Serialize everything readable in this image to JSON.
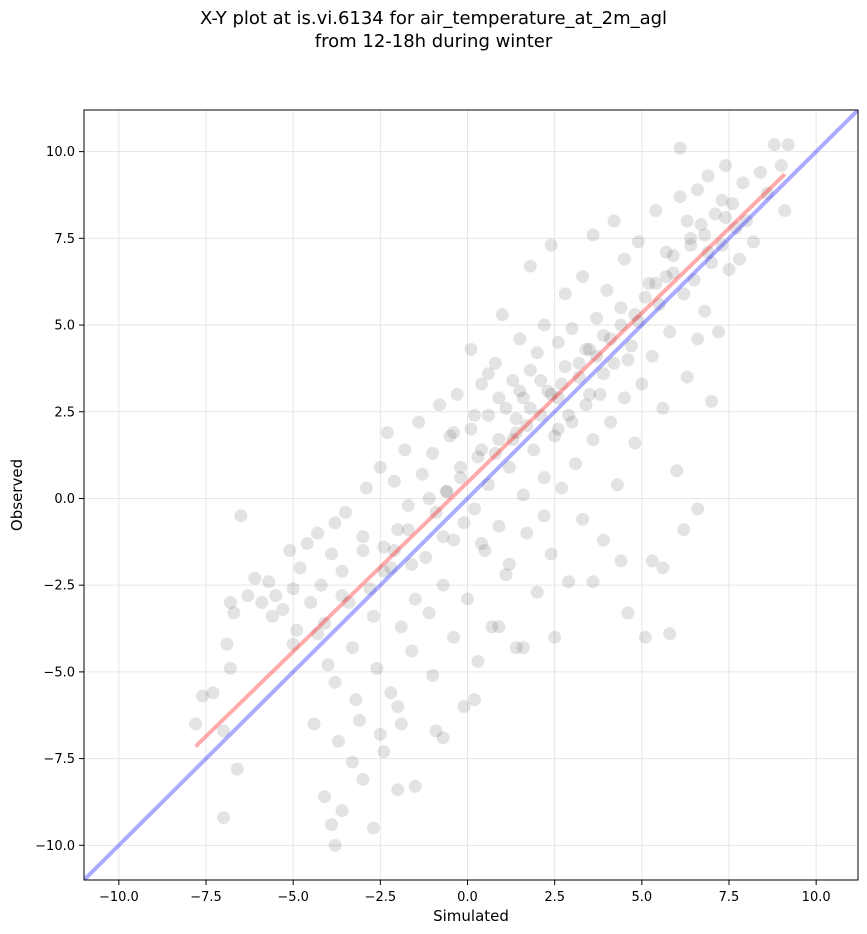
{
  "chart_data": {
    "type": "scatter",
    "title": [
      "X-Y plot at is.vi.6134 for air_temperature_at_2m_agl",
      "from 12-18h during winter"
    ],
    "xlabel": "Simulated",
    "ylabel": "Observed",
    "xlim": [
      -11.0,
      11.2
    ],
    "ylim": [
      -11.0,
      11.2
    ],
    "xticks": [
      -10.0,
      -7.5,
      -5.0,
      -2.5,
      0.0,
      2.5,
      5.0,
      7.5,
      10.0
    ],
    "yticks": [
      -10.0,
      -7.5,
      -5.0,
      -2.5,
      0.0,
      2.5,
      5.0,
      7.5,
      10.0
    ],
    "xtick_labels": [
      "−10.0",
      "−7.5",
      "−5.0",
      "−2.5",
      "0.0",
      "2.5",
      "5.0",
      "7.5",
      "10.0"
    ],
    "ytick_labels": [
      "−10.0",
      "−7.5",
      "−5.0",
      "−2.5",
      "0.0",
      "2.5",
      "5.0",
      "7.5",
      "10.0"
    ],
    "grid": true,
    "colors": {
      "points": "#000000",
      "identity_line": "#0000ff",
      "regression_line": "#ff0000"
    },
    "identity_line": {
      "x": [
        -11.0,
        11.2
      ],
      "y": [
        -11.0,
        11.2
      ]
    },
    "regression_line": {
      "x": [
        -7.8,
        9.1
      ],
      "y": [
        -7.15,
        9.35
      ]
    },
    "points": [
      [
        -7.8,
        -6.5
      ],
      [
        -7.6,
        -5.7
      ],
      [
        -7.3,
        -5.6
      ],
      [
        -7.0,
        -9.2
      ],
      [
        -7.0,
        -6.7
      ],
      [
        -6.9,
        -4.2
      ],
      [
        -6.8,
        -3.0
      ],
      [
        -6.7,
        -3.3
      ],
      [
        -6.6,
        -7.8
      ],
      [
        -6.5,
        -0.5
      ],
      [
        -6.8,
        -4.9
      ],
      [
        -6.3,
        -2.8
      ],
      [
        -6.1,
        -2.3
      ],
      [
        -5.9,
        -3.0
      ],
      [
        -5.7,
        -2.4
      ],
      [
        -5.5,
        -2.8
      ],
      [
        -5.3,
        -3.2
      ],
      [
        -5.1,
        -1.5
      ],
      [
        -5.0,
        -2.6
      ],
      [
        -4.9,
        -3.8
      ],
      [
        -4.8,
        -2.0
      ],
      [
        -4.6,
        -1.3
      ],
      [
        -4.5,
        -3.0
      ],
      [
        -4.4,
        -6.5
      ],
      [
        -4.3,
        -1.0
      ],
      [
        -4.2,
        -2.5
      ],
      [
        -4.1,
        -3.6
      ],
      [
        -4.0,
        -4.8
      ],
      [
        -3.9,
        -1.6
      ],
      [
        -3.8,
        -0.7
      ],
      [
        -3.8,
        -5.3
      ],
      [
        -3.7,
        -7.0
      ],
      [
        -3.6,
        -2.1
      ],
      [
        -3.5,
        -0.4
      ],
      [
        -3.4,
        -3.0
      ],
      [
        -3.3,
        -4.3
      ],
      [
        -3.2,
        -5.8
      ],
      [
        -3.1,
        -6.4
      ],
      [
        -3.0,
        -1.1
      ],
      [
        -3.0,
        -8.1
      ],
      [
        -2.9,
        0.3
      ],
      [
        -2.8,
        -2.6
      ],
      [
        -2.7,
        -3.4
      ],
      [
        -2.6,
        -4.9
      ],
      [
        -2.5,
        0.9
      ],
      [
        -2.4,
        -1.4
      ],
      [
        -2.4,
        -7.3
      ],
      [
        -2.3,
        1.9
      ],
      [
        -2.2,
        -2.0
      ],
      [
        -2.2,
        -5.6
      ],
      [
        -2.1,
        0.5
      ],
      [
        -2.0,
        -0.9
      ],
      [
        -2.0,
        -6.0
      ],
      [
        -1.9,
        -3.7
      ],
      [
        -1.8,
        1.4
      ],
      [
        -1.7,
        -0.2
      ],
      [
        -1.6,
        -4.4
      ],
      [
        -1.5,
        -8.3
      ],
      [
        -1.5,
        -2.9
      ],
      [
        -1.4,
        2.2
      ],
      [
        -1.3,
        0.7
      ],
      [
        -1.2,
        -1.7
      ],
      [
        -1.1,
        -3.3
      ],
      [
        -1.0,
        -5.1
      ],
      [
        -1.0,
        1.3
      ],
      [
        -0.9,
        -0.4
      ],
      [
        -0.8,
        2.7
      ],
      [
        -0.7,
        -2.5
      ],
      [
        -0.7,
        -6.9
      ],
      [
        -0.6,
        0.2
      ],
      [
        -0.5,
        1.8
      ],
      [
        -0.4,
        -1.2
      ],
      [
        -0.4,
        -4.0
      ],
      [
        -0.3,
        3.0
      ],
      [
        -0.2,
        0.9
      ],
      [
        -0.1,
        -0.7
      ],
      [
        0.0,
        -2.9
      ],
      [
        0.1,
        4.3
      ],
      [
        0.1,
        2.0
      ],
      [
        0.2,
        -0.3
      ],
      [
        0.3,
        -4.7
      ],
      [
        0.3,
        1.2
      ],
      [
        0.4,
        3.3
      ],
      [
        0.5,
        -1.5
      ],
      [
        0.6,
        0.4
      ],
      [
        0.6,
        2.4
      ],
      [
        0.7,
        -3.7
      ],
      [
        0.8,
        3.9
      ],
      [
        0.9,
        1.7
      ],
      [
        0.9,
        -0.8
      ],
      [
        1.0,
        5.3
      ],
      [
        1.1,
        2.6
      ],
      [
        1.1,
        -2.2
      ],
      [
        1.2,
        0.9
      ],
      [
        1.3,
        3.4
      ],
      [
        1.4,
        -4.3
      ],
      [
        1.4,
        1.9
      ],
      [
        1.5,
        4.6
      ],
      [
        1.6,
        0.1
      ],
      [
        1.6,
        2.9
      ],
      [
        1.7,
        -1.0
      ],
      [
        1.8,
        3.7
      ],
      [
        1.8,
        6.7
      ],
      [
        1.9,
        1.4
      ],
      [
        2.0,
        4.2
      ],
      [
        2.0,
        -2.7
      ],
      [
        2.1,
        2.4
      ],
      [
        2.2,
        0.6
      ],
      [
        2.2,
        5.0
      ],
      [
        2.3,
        3.1
      ],
      [
        2.4,
        7.3
      ],
      [
        2.4,
        -1.6
      ],
      [
        2.5,
        1.8
      ],
      [
        2.6,
        4.5
      ],
      [
        2.6,
        2.9
      ],
      [
        2.7,
        0.3
      ],
      [
        2.8,
        3.8
      ],
      [
        2.8,
        5.9
      ],
      [
        2.9,
        -2.4
      ],
      [
        3.0,
        2.2
      ],
      [
        3.0,
        4.9
      ],
      [
        3.1,
        1.0
      ],
      [
        3.2,
        3.5
      ],
      [
        3.3,
        6.4
      ],
      [
        3.3,
        -0.6
      ],
      [
        3.4,
        2.7
      ],
      [
        3.5,
        4.3
      ],
      [
        3.6,
        7.6
      ],
      [
        3.6,
        1.7
      ],
      [
        3.7,
        5.2
      ],
      [
        3.8,
        3.0
      ],
      [
        3.9,
        -1.2
      ],
      [
        3.9,
        4.7
      ],
      [
        4.0,
        6.0
      ],
      [
        4.1,
        2.2
      ],
      [
        4.2,
        8.0
      ],
      [
        4.2,
        3.9
      ],
      [
        4.3,
        0.4
      ],
      [
        4.4,
        5.5
      ],
      [
        4.5,
        2.9
      ],
      [
        4.5,
        6.9
      ],
      [
        4.6,
        -3.3
      ],
      [
        4.7,
        4.4
      ],
      [
        4.8,
        1.6
      ],
      [
        4.9,
        7.4
      ],
      [
        4.9,
        5.1
      ],
      [
        5.0,
        3.3
      ],
      [
        5.1,
        -4.0
      ],
      [
        5.2,
        6.2
      ],
      [
        5.3,
        -1.8
      ],
      [
        5.3,
        4.1
      ],
      [
        5.4,
        8.3
      ],
      [
        5.5,
        5.6
      ],
      [
        5.6,
        2.6
      ],
      [
        5.7,
        7.1
      ],
      [
        5.8,
        -3.9
      ],
      [
        5.8,
        4.8
      ],
      [
        5.9,
        6.5
      ],
      [
        6.0,
        0.8
      ],
      [
        6.1,
        8.7
      ],
      [
        6.1,
        10.1
      ],
      [
        6.2,
        5.9
      ],
      [
        6.3,
        3.5
      ],
      [
        6.4,
        7.5
      ],
      [
        6.5,
        6.3
      ],
      [
        6.6,
        8.9
      ],
      [
        6.6,
        4.6
      ],
      [
        6.7,
        7.9
      ],
      [
        6.8,
        5.4
      ],
      [
        6.9,
        9.3
      ],
      [
        7.0,
        6.8
      ],
      [
        7.1,
        8.2
      ],
      [
        7.2,
        4.8
      ],
      [
        7.3,
        7.3
      ],
      [
        7.4,
        9.6
      ],
      [
        7.5,
        6.6
      ],
      [
        7.6,
        8.5
      ],
      [
        7.7,
        7.8
      ],
      [
        7.8,
        6.9
      ],
      [
        7.9,
        9.1
      ],
      [
        8.0,
        8.0
      ],
      [
        8.2,
        7.4
      ],
      [
        8.4,
        9.4
      ],
      [
        8.6,
        8.8
      ],
      [
        8.8,
        10.2
      ],
      [
        9.0,
        9.6
      ],
      [
        9.1,
        8.3
      ],
      [
        9.2,
        10.2
      ],
      [
        -3.9,
        -9.4
      ],
      [
        -3.8,
        -10.0
      ],
      [
        -4.1,
        -8.6
      ],
      [
        -3.6,
        -9.0
      ],
      [
        -2.7,
        -9.5
      ],
      [
        -2.0,
        -8.4
      ],
      [
        -3.3,
        -7.6
      ],
      [
        -2.5,
        -6.8
      ],
      [
        -1.9,
        -6.5
      ],
      [
        -0.9,
        -6.7
      ],
      [
        -0.1,
        -6.0
      ],
      [
        0.2,
        -5.8
      ],
      [
        0.9,
        -3.7
      ],
      [
        1.6,
        -4.3
      ],
      [
        2.5,
        -4.0
      ],
      [
        3.6,
        -2.4
      ],
      [
        4.4,
        -1.8
      ],
      [
        5.6,
        -2.0
      ],
      [
        6.2,
        -0.9
      ],
      [
        6.6,
        -0.3
      ],
      [
        7.0,
        2.8
      ],
      [
        2.2,
        -0.5
      ],
      [
        1.2,
        -1.9
      ],
      [
        0.4,
        -1.3
      ],
      [
        -0.7,
        -1.1
      ],
      [
        -1.6,
        -1.9
      ],
      [
        -2.4,
        -2.1
      ],
      [
        -3.0,
        -1.5
      ],
      [
        -3.6,
        -2.8
      ],
      [
        -4.3,
        -3.9
      ],
      [
        -5.0,
        -4.2
      ],
      [
        -5.6,
        -3.4
      ],
      [
        -2.1,
        -1.5
      ],
      [
        -1.1,
        0.0
      ],
      [
        -0.2,
        0.6
      ],
      [
        0.8,
        1.3
      ],
      [
        1.7,
        2.1
      ],
      [
        2.7,
        3.3
      ],
      [
        3.7,
        4.1
      ],
      [
        4.8,
        5.3
      ],
      [
        5.7,
        6.4
      ],
      [
        6.8,
        7.6
      ],
      [
        -1.7,
        -0.9
      ],
      [
        -0.6,
        0.2
      ],
      [
        0.4,
        1.4
      ],
      [
        1.4,
        2.3
      ],
      [
        2.4,
        3.0
      ],
      [
        3.4,
        4.3
      ],
      [
        4.4,
        5.0
      ],
      [
        5.4,
        6.2
      ],
      [
        6.4,
        7.3
      ],
      [
        7.4,
        8.1
      ],
      [
        1.8,
        2.6
      ],
      [
        2.1,
        3.4
      ],
      [
        2.9,
        2.4
      ],
      [
        3.2,
        3.9
      ],
      [
        1.3,
        1.7
      ],
      [
        0.9,
        2.9
      ],
      [
        1.5,
        3.1
      ],
      [
        2.6,
        2.0
      ],
      [
        3.5,
        3.0
      ],
      [
        3.9,
        3.6
      ],
      [
        4.1,
        4.6
      ],
      [
        4.6,
        4.0
      ],
      [
        5.1,
        5.8
      ],
      [
        5.9,
        7.0
      ],
      [
        6.3,
        8.0
      ],
      [
        6.9,
        7.1
      ],
      [
        7.3,
        8.6
      ],
      [
        -0.4,
        1.9
      ],
      [
        0.2,
        2.4
      ],
      [
        0.6,
        3.6
      ]
    ]
  }
}
